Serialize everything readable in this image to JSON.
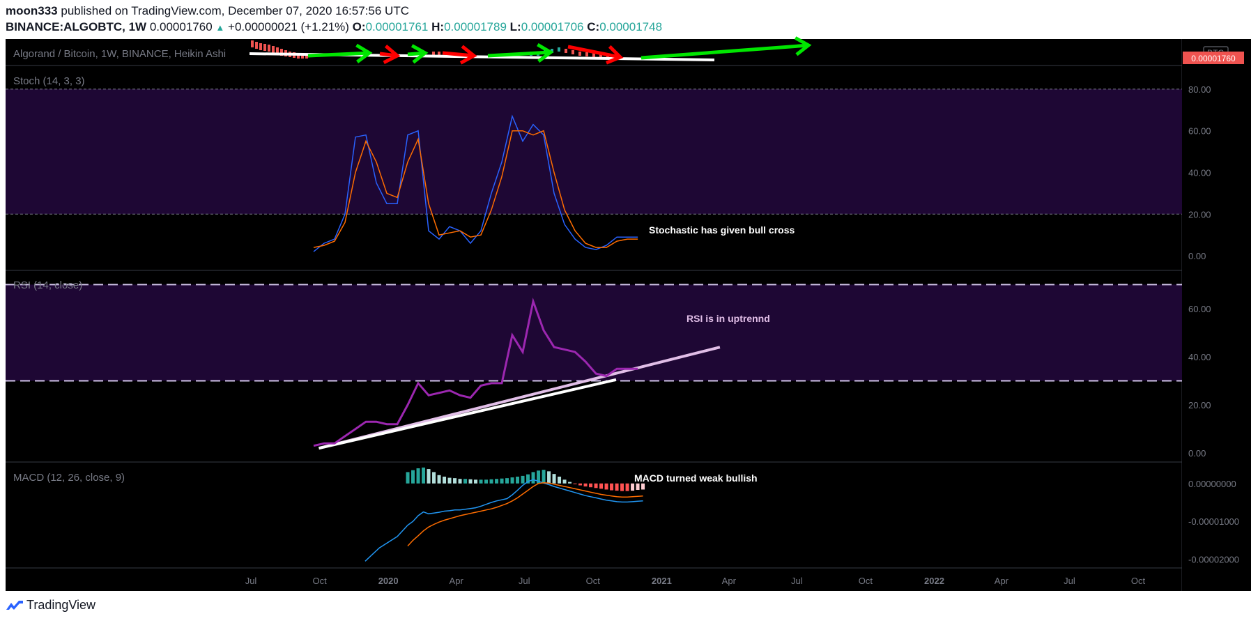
{
  "header": {
    "author": "moon333",
    "published_text": "published on TradingView.com, December 07, 2020 16:57:56 UTC",
    "symbol": "BINANCE:ALGOBTC, 1W",
    "last": "0.00001760",
    "change_arrow": "▲",
    "change": "+0.00000021 (+1.21%)",
    "o_label": "O:",
    "o_value": "0.00001761",
    "h_label": "H:",
    "h_value": "0.00001789",
    "l_label": "L:",
    "l_value": "0.00001706",
    "c_label": "C:",
    "c_value": "0.00001748"
  },
  "price_pane": {
    "title": "Algorand / Bitcoin, 1W, BINANCE, Heikin Ashi",
    "currency_badge": "BTC",
    "price_label": "0.00001760"
  },
  "footer": {
    "brand": "TradingView"
  },
  "colors": {
    "background": "#000000",
    "band_fill": "#1e0734",
    "stoch_k": "#2962ff",
    "stoch_d": "#ff6d00",
    "rsi": "#9c27b0",
    "trendline": "#ffffff",
    "rsi_trendline": "#e1bee7",
    "green_arrow": "#00e600",
    "red_arrow": "#ff0000",
    "macd_line": "#2196f3",
    "signal_line": "#ff6d00",
    "axis_text": "#787b86",
    "price_tag": "#ef5350"
  },
  "chart_data": [
    {
      "type": "line",
      "title": "Stoch (14, 3, 3)",
      "x_axis": "time (weekly)",
      "ylim": [
        -5,
        88
      ],
      "y_ticks": [
        "80.00",
        "60.00",
        "40.00",
        "20.00",
        "0.00"
      ],
      "bands": [
        20,
        80
      ],
      "x": [
        "2019-09-23",
        "2019-10-07",
        "2019-10-21",
        "2019-11-04",
        "2019-11-18",
        "2019-12-02",
        "2019-12-16",
        "2019-12-30",
        "2020-01-13",
        "2020-01-27",
        "2020-02-10",
        "2020-02-24",
        "2020-03-09",
        "2020-03-23",
        "2020-04-06",
        "2020-04-20",
        "2020-05-04",
        "2020-05-18",
        "2020-06-01",
        "2020-06-15",
        "2020-06-29",
        "2020-07-13",
        "2020-07-27",
        "2020-08-10",
        "2020-08-24",
        "2020-09-07",
        "2020-09-21",
        "2020-10-05",
        "2020-10-19",
        "2020-11-02",
        "2020-11-16",
        "2020-11-30"
      ],
      "series": [
        {
          "name": "%K",
          "values": [
            2,
            6,
            8,
            20,
            57,
            58,
            35,
            25,
            25,
            58,
            60,
            12,
            8,
            14,
            12,
            6,
            12,
            30,
            45,
            67,
            55,
            63,
            58,
            30,
            15,
            8,
            4,
            3,
            5,
            9,
            9,
            9
          ]
        },
        {
          "name": "%D",
          "values": [
            4,
            5,
            7,
            16,
            40,
            55,
            45,
            30,
            28,
            45,
            56,
            25,
            10,
            11,
            12,
            9,
            10,
            22,
            38,
            60,
            60,
            58,
            60,
            40,
            22,
            12,
            6,
            4,
            4,
            7,
            8,
            8
          ]
        }
      ],
      "annotations": [
        "Stochastic has given bull cross"
      ]
    },
    {
      "type": "line",
      "title": "RSI (14, close)",
      "x_axis": "time (weekly)",
      "ylim": [
        -2,
        73
      ],
      "y_ticks": [
        "60.00",
        "40.00",
        "20.00",
        "0.00"
      ],
      "bands": [
        30,
        70
      ],
      "x": [
        "2019-09-23",
        "2019-10-07",
        "2019-10-21",
        "2019-11-04",
        "2019-11-18",
        "2019-12-02",
        "2019-12-16",
        "2019-12-30",
        "2020-01-13",
        "2020-01-27",
        "2020-02-10",
        "2020-02-24",
        "2020-03-09",
        "2020-03-23",
        "2020-04-06",
        "2020-04-20",
        "2020-05-04",
        "2020-05-18",
        "2020-06-01",
        "2020-06-15",
        "2020-06-29",
        "2020-07-13",
        "2020-07-27",
        "2020-08-10",
        "2020-08-24",
        "2020-09-07",
        "2020-09-21",
        "2020-10-05",
        "2020-10-19",
        "2020-11-02",
        "2020-11-16",
        "2020-11-30"
      ],
      "series": [
        {
          "name": "RSI",
          "values": [
            3,
            4,
            4,
            7,
            10,
            13,
            13,
            12,
            12,
            20,
            29,
            24,
            25,
            26,
            24,
            23,
            28,
            29,
            29,
            49,
            42,
            63,
            51,
            44,
            43,
            42,
            38,
            33,
            32,
            35,
            35,
            35
          ]
        }
      ],
      "trendline": {
        "from": [
          "2019-09-30",
          2
        ],
        "to": [
          "2021-03-20",
          44
        ]
      },
      "annotations": [
        "RSI is in uptrennd"
      ]
    },
    {
      "type": "bar",
      "title": "MACD (12, 26, close, 9)",
      "x_axis": "time (weekly)",
      "ylim": [
        -2.1e-05,
        4e-06
      ],
      "y_ticks": [
        "0.00000000",
        "-0.00001000",
        "-0.00002000"
      ],
      "x": [
        "2020-01-27",
        "2020-02-03",
        "2020-02-10",
        "2020-02-17",
        "2020-02-24",
        "2020-03-02",
        "2020-03-09",
        "2020-03-16",
        "2020-03-23",
        "2020-03-30",
        "2020-04-06",
        "2020-04-13",
        "2020-04-20",
        "2020-04-27",
        "2020-05-04",
        "2020-05-11",
        "2020-05-18",
        "2020-05-25",
        "2020-06-01",
        "2020-06-08",
        "2020-06-15",
        "2020-06-22",
        "2020-06-29",
        "2020-07-06",
        "2020-07-13",
        "2020-07-20",
        "2020-07-27",
        "2020-08-03",
        "2020-08-10",
        "2020-08-17",
        "2020-08-24",
        "2020-08-31",
        "2020-09-07",
        "2020-09-14",
        "2020-09-21",
        "2020-09-28",
        "2020-10-05",
        "2020-10-12",
        "2020-10-19",
        "2020-10-26",
        "2020-11-02",
        "2020-11-09",
        "2020-11-16",
        "2020-11-23",
        "2020-11-30",
        "2020-12-07"
      ],
      "series": [
        {
          "name": "Histogram",
          "values": [
            3e-06,
            3.5e-06,
            4e-06,
            4.2e-06,
            3.8e-06,
            3e-06,
            2.2e-06,
            1.8e-06,
            1.5e-06,
            1.4e-06,
            1.2e-06,
            1.2e-06,
            1.1e-06,
            1e-06,
            1e-06,
            1e-06,
            1.1e-06,
            1.2e-06,
            1.3e-06,
            1.4e-06,
            1.6e-06,
            1.8e-06,
            2e-06,
            2.4e-06,
            3e-06,
            3.4e-06,
            3.6e-06,
            3.2e-06,
            2.5e-06,
            1.8e-06,
            1e-06,
            4e-07,
            -1e-07,
            -5e-07,
            -8e-07,
            -1e-06,
            -1.2e-06,
            -1.4e-06,
            -1.6e-06,
            -1.8e-06,
            -1.9e-06,
            -2e-06,
            -2e-06,
            -1.9e-06,
            -1.7e-06,
            -1.6e-06
          ]
        },
        {
          "name": "MACD",
          "values": [
            -1.1e-05,
            -1e-05,
            -8.5e-06,
            -7.5e-06,
            -8e-06,
            -7.8e-06,
            -7.6e-06,
            -7.3e-06,
            -7.2e-06,
            -7e-06,
            -7e-06,
            -6.8e-06,
            -6.6e-06,
            -6.4e-06,
            -6e-06,
            -5.5e-06,
            -5e-06,
            -4.6e-06,
            -4.3e-06,
            -4e-06,
            -3e-06,
            -1.8e-06,
            -5e-07,
            5e-07,
            1e-06,
            6e-07,
            1e-07,
            -3e-07,
            -8e-07,
            -1.2e-06,
            -1.6e-06,
            -2e-06,
            -2.4e-06,
            -2.8e-06,
            -3.2e-06,
            -3.5e-06,
            -3.8e-06,
            -4.1e-06,
            -4.4e-06,
            -4.6e-06,
            -4.8e-06,
            -4.9e-06,
            -4.9e-06,
            -4.8e-06,
            -4.7e-06,
            -4.6e-06
          ]
        },
        {
          "name": "Signal",
          "values": [
            -1.65e-05,
            -1.5e-05,
            -1.38e-05,
            -1.25e-05,
            -1.15e-05,
            -1.08e-05,
            -1.02e-05,
            -9.7e-06,
            -9.3e-06,
            -8.9e-06,
            -8.5e-06,
            -8.2e-06,
            -7.9e-06,
            -7.6e-06,
            -7.3e-06,
            -7e-06,
            -6.7e-06,
            -6.3e-06,
            -5.8e-06,
            -5.3e-06,
            -4.6e-06,
            -3.8e-06,
            -2.8e-06,
            -1.8e-06,
            -8e-07,
            0.0,
            2e-07,
            1e-07,
            -2e-07,
            -5e-07,
            -8e-07,
            -1.1e-06,
            -1.4e-06,
            -1.7e-06,
            -2e-06,
            -2.3e-06,
            -2.6e-06,
            -2.9e-06,
            -3.1e-06,
            -3.3e-06,
            -3.5e-06,
            -3.6e-06,
            -3.6e-06,
            -3.5e-06,
            -3.4e-06,
            -3.3e-06
          ]
        }
      ],
      "annotations": [
        "MACD turned weak bullish"
      ]
    }
  ],
  "time_axis": {
    "ticks": [
      {
        "label": "Jul",
        "date": "2019-07-01",
        "bold": false
      },
      {
        "label": "Oct",
        "date": "2019-10-01",
        "bold": false
      },
      {
        "label": "2020",
        "date": "2020-01-01",
        "bold": true
      },
      {
        "label": "Apr",
        "date": "2020-04-01",
        "bold": false
      },
      {
        "label": "Jul",
        "date": "2020-07-01",
        "bold": false
      },
      {
        "label": "Oct",
        "date": "2020-10-01",
        "bold": false
      },
      {
        "label": "2021",
        "date": "2021-01-01",
        "bold": true
      },
      {
        "label": "Apr",
        "date": "2021-04-01",
        "bold": false
      },
      {
        "label": "Jul",
        "date": "2021-07-01",
        "bold": false
      },
      {
        "label": "Oct",
        "date": "2021-10-01",
        "bold": false
      },
      {
        "label": "2022",
        "date": "2022-01-01",
        "bold": true
      },
      {
        "label": "Apr",
        "date": "2022-04-01",
        "bold": false
      },
      {
        "label": "Jul",
        "date": "2022-07-01",
        "bold": false
      },
      {
        "label": "Oct",
        "date": "2022-10-01",
        "bold": false
      }
    ]
  }
}
